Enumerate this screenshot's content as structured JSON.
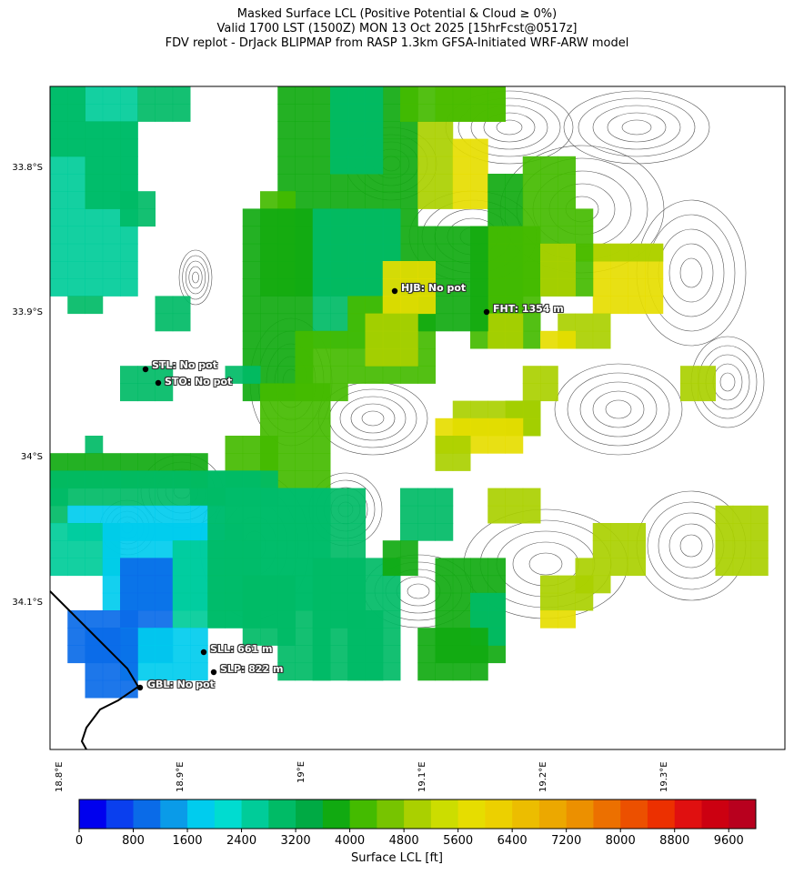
{
  "title": {
    "line1": "Masked Surface LCL (Positive Potential & Cloud ≥ 0%)",
    "line2": "Valid 1700 LST (1500Z) MON 13 Oct 2025 [15hrFcst@0517z]",
    "line3": "FDV replot - DrJack BLIPMAP from RASP 1.3km GFSA-Initiated WRF-ARW model"
  },
  "axes": {
    "lat_labels": [
      "33.8°S",
      "33.9°S",
      "34°S",
      "34.1°S"
    ],
    "lon_labels": [
      "18.8°E",
      "18.9°E",
      "19°E",
      "19.1°E",
      "19.2°E",
      "19.3°E"
    ]
  },
  "stations": [
    {
      "code": "HJB",
      "label": "HJB: No pot"
    },
    {
      "code": "FHT",
      "label": "FHT: 1354 m"
    },
    {
      "code": "STL",
      "label": "STL: No pot"
    },
    {
      "code": "STO",
      "label": "STO: No pot"
    },
    {
      "code": "SLL",
      "label": "SLL: 661 m"
    },
    {
      "code": "SLP",
      "label": "SLP: 822 m"
    },
    {
      "code": "GBL",
      "label": "GBL: No pot"
    }
  ],
  "colorbar": {
    "title": "Surface LCL [ft]",
    "ticks": [
      "0",
      "800",
      "1600",
      "2400",
      "3200",
      "4000",
      "4800",
      "5600",
      "6400",
      "7200",
      "8000",
      "8800",
      "9600"
    ],
    "colors": [
      "#0000ee",
      "#0a3fee",
      "#0a6be8",
      "#0a9be8",
      "#00ccee",
      "#00dcd0",
      "#00cc99",
      "#00bb66",
      "#00aa44",
      "#11aa11",
      "#44bb00",
      "#77c400",
      "#aad000",
      "#ccdd00",
      "#e6dd00",
      "#ecd000",
      "#ecbd00",
      "#eca800",
      "#ec9000",
      "#ec7000",
      "#ec5000",
      "#ec3000",
      "#e01010",
      "#cc0011",
      "#b8001e"
    ]
  },
  "field_colors": {
    "blue": "#0a6be8",
    "cyan": "#00ccee",
    "teal": "#00cc99",
    "green": "#00bb66",
    "dkgreen": "#11aa11",
    "lime": "#44bb00",
    "yg": "#aad000",
    "yellow": "#e6dd00"
  }
}
